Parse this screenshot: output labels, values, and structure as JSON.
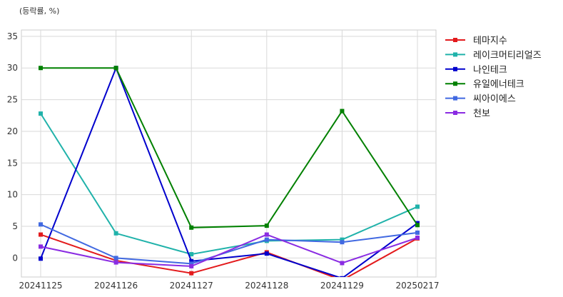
{
  "chart_data": {
    "type": "line",
    "unit_label": "(등락률, %)",
    "x": [
      "20241125",
      "20241126",
      "20241127",
      "20241128",
      "20241129",
      "20250217"
    ],
    "ylim": [
      -3,
      36
    ],
    "yticks": [
      0,
      5,
      10,
      15,
      20,
      25,
      30,
      35
    ],
    "grid": true,
    "legend_position": "right",
    "series": [
      {
        "name": "테마지수",
        "color": "#e31a1c",
        "values": [
          3.7,
          -0.4,
          -2.4,
          0.9,
          -3.5,
          3.1
        ]
      },
      {
        "name": "레이크머티리얼즈",
        "color": "#20b2aa",
        "values": [
          22.8,
          3.9,
          0.6,
          2.7,
          2.9,
          8.1
        ]
      },
      {
        "name": "나인테크",
        "color": "#0000cd",
        "values": [
          -0.1,
          30.0,
          -0.5,
          0.7,
          -3.2,
          5.5
        ]
      },
      {
        "name": "유일에너테크",
        "color": "#008000",
        "values": [
          30.0,
          30.0,
          4.8,
          5.1,
          23.2,
          5.2
        ]
      },
      {
        "name": "씨아이에스",
        "color": "#4169e1",
        "values": [
          5.3,
          0.0,
          -0.9,
          2.9,
          2.5,
          4.0
        ]
      },
      {
        "name": "천보",
        "color": "#8a2be2",
        "values": [
          1.8,
          -0.7,
          -1.3,
          3.7,
          -0.8,
          3.2
        ]
      }
    ]
  }
}
